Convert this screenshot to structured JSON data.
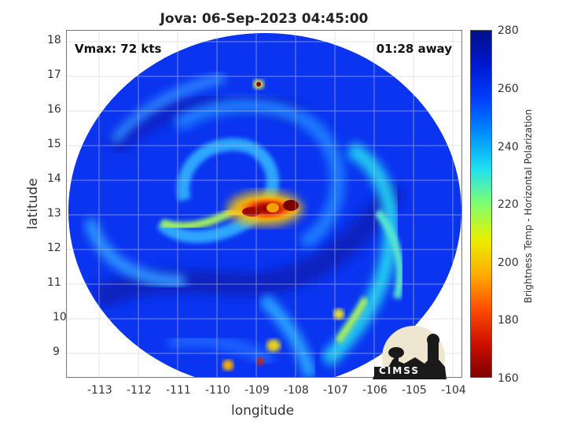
{
  "title": "Jova: 06-Sep-2023 04:45:00",
  "vmax": "Vmax: 72 kts",
  "time_away": "01:28 away",
  "xlabel": "longitude",
  "ylabel": "latitude",
  "colorbar_label": "Brightness Temp - Horizontal Polarization",
  "logo_text": "CIMSS",
  "x_ticks": [
    "-113",
    "-112",
    "-111",
    "-110",
    "-109",
    "-108",
    "-107",
    "-106",
    "-105",
    "-104"
  ],
  "y_ticks": [
    "18",
    "17",
    "16",
    "15",
    "14",
    "13",
    "12",
    "11",
    "10",
    "9"
  ],
  "colorbar_ticks": [
    "280",
    "260",
    "240",
    "220",
    "200",
    "180",
    "160"
  ],
  "chart_data": {
    "type": "heatmap",
    "title": "Jova: 06-Sep-2023 04:45:00",
    "xlabel": "longitude",
    "ylabel": "latitude",
    "xlim": [
      -113.9,
      -103.9
    ],
    "ylim": [
      8.3,
      18.3
    ],
    "colorbar": {
      "label": "Brightness Temp - Horizontal Polarization",
      "range": [
        160,
        280
      ],
      "colormap": "jet"
    },
    "storm_center": {
      "lon": -108.8,
      "lat": 13.1
    },
    "coldest_region_K": 160,
    "background_K": 270
  }
}
